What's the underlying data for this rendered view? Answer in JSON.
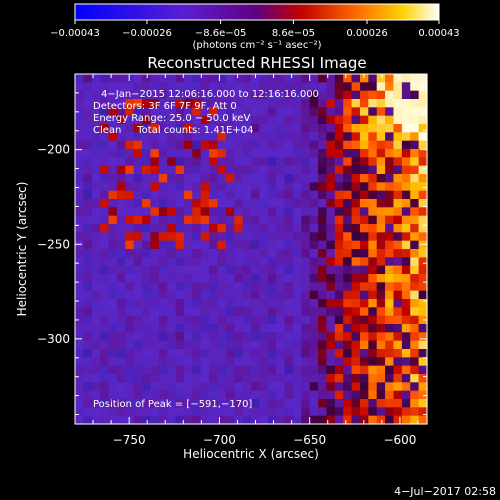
{
  "chart_data": {
    "type": "heatmap",
    "title": "Reconstructed RHESSI Image",
    "xlabel": "Heliocentric X (arcsec)",
    "ylabel": "Heliocentric Y (arcsec)",
    "xlim": [
      -780,
      -585
    ],
    "ylim": [
      -345,
      -160
    ],
    "x_ticks": [
      -750,
      -700,
      -650,
      -600
    ],
    "x_tick_labels": [
      "−750",
      "−700",
      "−650",
      "−600"
    ],
    "y_ticks": [
      -200,
      -250,
      -300
    ],
    "y_tick_labels": [
      "−200",
      "−250",
      "−300"
    ],
    "colorbar": {
      "tick_values": [
        -0.00043,
        -0.00026,
        -8.6e-05,
        8.6e-05,
        0.00026,
        0.00043
      ],
      "tick_labels": [
        "−0.00043",
        "−0.00026",
        "−8.6e−05",
        "8.6e−05",
        "0.00026",
        "0.00043"
      ],
      "unit_label": "(photons cm⁻² s⁻¹ asec⁻²)",
      "range": [
        -0.00043,
        0.00043
      ],
      "colormap": "blue-purple-red-orange-yellow-white"
    },
    "annotations": [
      "4−Jan−2015 12:06:16.000 to 12:16:16.000",
      "Detectors: 3F 6F 7F 9F, Att 0",
      "Energy Range: 25.0 − 50.0 keV",
      "Clean     Total counts: 1.41E+04"
    ],
    "peak_label": "Position of Peak = [−591,−170]",
    "peak_position": [
      -591,
      -170
    ],
    "source_region": "bright emission along right edge, x > -625 arcsec"
  },
  "footer": {
    "timestamp": "4−Jul−2017 02:58"
  }
}
